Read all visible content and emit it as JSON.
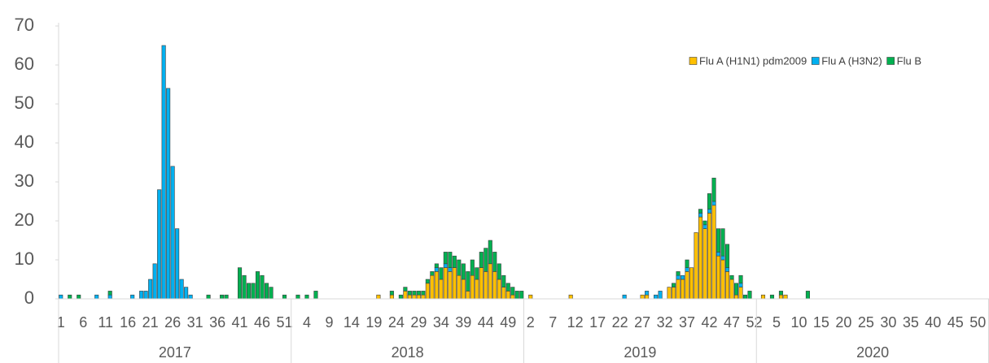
{
  "chart_data": {
    "type": "stacked_bar",
    "categories": [
      "1",
      null,
      null,
      null,
      null,
      "6",
      null,
      null,
      null,
      null,
      "11",
      null,
      null,
      null,
      null,
      "16",
      null,
      null,
      null,
      null,
      "21",
      null,
      null,
      null,
      null,
      "26",
      null,
      null,
      null,
      null,
      "31",
      null,
      null,
      null,
      null,
      "36",
      null,
      null,
      null,
      null,
      "41",
      null,
      null,
      null,
      null,
      "46",
      null,
      null,
      null,
      null,
      "51",
      null,
      null,
      null,
      null,
      "4",
      null,
      null,
      null,
      null,
      "9",
      null,
      null,
      null,
      null,
      "14",
      null,
      null,
      null,
      null,
      "19",
      null,
      null,
      null,
      null,
      "24",
      null,
      null,
      null,
      null,
      "29",
      null,
      null,
      null,
      null,
      "34",
      null,
      null,
      null,
      null,
      "39",
      null,
      null,
      null,
      null,
      "44",
      null,
      null,
      null,
      null,
      "49",
      null,
      null,
      null,
      null,
      "2",
      null,
      null,
      null,
      null,
      "7",
      null,
      null,
      null,
      null,
      "12",
      null,
      null,
      null,
      null,
      "17",
      null,
      null,
      null,
      null,
      "22",
      null,
      null,
      null,
      null,
      "27",
      null,
      null,
      null,
      null,
      "32",
      null,
      null,
      null,
      null,
      "37",
      null,
      null,
      null,
      null,
      "42",
      null,
      null,
      null,
      null,
      "47",
      null,
      null,
      null,
      null,
      "52",
      null,
      null,
      null,
      null,
      "5",
      null,
      null,
      null,
      null,
      "10",
      null,
      null,
      null,
      null,
      "15",
      null,
      null,
      null,
      null,
      "20",
      null,
      null,
      null,
      null,
      "25",
      null,
      null,
      null,
      null,
      "30",
      null,
      null,
      null,
      null,
      "35",
      null,
      null,
      null,
      null,
      "40",
      null,
      null,
      null,
      null,
      "45",
      null,
      null,
      null,
      null,
      "50",
      null,
      null
    ],
    "category_groups": [
      {
        "label": "2017",
        "size": 52
      },
      {
        "label": "2018",
        "size": 52
      },
      {
        "label": "2019",
        "size": 52
      },
      {
        "label": "2020",
        "size": 52
      }
    ],
    "series": [
      {
        "name": "Flu A (H1N1) pdm2009",
        "color": "#FFC000",
        "values": [
          0,
          0,
          0,
          0,
          0,
          0,
          0,
          0,
          0,
          0,
          0,
          0,
          0,
          0,
          0,
          0,
          0,
          0,
          0,
          0,
          0,
          0,
          0,
          0,
          0,
          0,
          0,
          0,
          0,
          0,
          0,
          0,
          0,
          0,
          0,
          0,
          0,
          0,
          0,
          0,
          0,
          0,
          0,
          0,
          0,
          0,
          0,
          0,
          0,
          0,
          0,
          0,
          0,
          0,
          0,
          0,
          0,
          0,
          0,
          0,
          0,
          0,
          0,
          0,
          0,
          0,
          0,
          0,
          0,
          0,
          0,
          1,
          0,
          0,
          1,
          0,
          0,
          2,
          1,
          1,
          1,
          1,
          4,
          6,
          7,
          5,
          8,
          7,
          8,
          6,
          5,
          2,
          6,
          5,
          8,
          7,
          9,
          7,
          5,
          3,
          2,
          1,
          0,
          0,
          0,
          1,
          0,
          0,
          0,
          0,
          0,
          0,
          0,
          0,
          1,
          0,
          0,
          0,
          0,
          0,
          0,
          0,
          0,
          0,
          0,
          0,
          0,
          0,
          0,
          0,
          1,
          1,
          0,
          0,
          0,
          0,
          3,
          3,
          5,
          5,
          7,
          8,
          17,
          21,
          18,
          22,
          24,
          11,
          10,
          7,
          5,
          1,
          3,
          0,
          0,
          0,
          0,
          1,
          0,
          0,
          0,
          1,
          1,
          0,
          0,
          0,
          0,
          0,
          0,
          0,
          0,
          0,
          0,
          0,
          0,
          0,
          0,
          0,
          0,
          0,
          0,
          0,
          0,
          0,
          0,
          0,
          0,
          0,
          0,
          0,
          0,
          0,
          0,
          0,
          0,
          0,
          0,
          0,
          0,
          0,
          0,
          0,
          0,
          0,
          0,
          0,
          0,
          0
        ]
      },
      {
        "name": "Flu A (H3N2)",
        "color": "#00B0F0",
        "values": [
          1,
          0,
          0,
          0,
          0,
          0,
          0,
          0,
          1,
          0,
          0,
          1,
          0,
          0,
          0,
          0,
          1,
          0,
          2,
          2,
          5,
          9,
          28,
          65,
          54,
          34,
          18,
          5,
          3,
          1,
          0,
          0,
          0,
          0,
          0,
          0,
          0,
          0,
          0,
          0,
          0,
          0,
          0,
          0,
          0,
          0,
          0,
          0,
          0,
          0,
          0,
          0,
          0,
          0,
          0,
          0,
          0,
          0,
          0,
          0,
          0,
          0,
          0,
          0,
          0,
          0,
          0,
          0,
          0,
          0,
          0,
          0,
          0,
          0,
          0,
          0,
          0,
          0,
          0,
          0,
          0,
          0,
          0,
          0,
          1,
          0,
          1,
          1,
          0,
          0,
          0,
          0,
          0,
          0,
          0,
          0,
          0,
          0,
          0,
          0,
          0,
          0,
          0,
          0,
          0,
          0,
          0,
          0,
          0,
          0,
          0,
          0,
          0,
          0,
          0,
          0,
          0,
          0,
          0,
          0,
          0,
          0,
          0,
          0,
          0,
          0,
          1,
          0,
          0,
          0,
          0,
          1,
          0,
          1,
          2,
          0,
          0,
          0,
          1,
          1,
          1,
          0,
          0,
          1,
          1,
          1,
          1,
          1,
          1,
          1,
          0,
          0,
          1,
          0,
          0,
          0,
          0,
          0,
          0,
          0,
          0,
          0,
          0,
          0,
          0,
          0,
          0,
          0,
          0,
          0,
          0,
          0,
          0,
          0,
          0,
          0,
          0,
          0,
          0,
          0,
          0,
          0,
          0,
          0,
          0,
          0,
          0,
          0,
          0,
          0,
          0,
          0,
          0,
          0,
          0,
          0,
          0,
          0,
          0,
          0,
          0,
          0,
          0,
          0,
          0,
          0,
          0,
          0
        ]
      },
      {
        "name": "Flu B",
        "color": "#00B050",
        "values": [
          0,
          0,
          1,
          0,
          1,
          0,
          0,
          0,
          0,
          0,
          0,
          1,
          0,
          0,
          0,
          0,
          0,
          0,
          0,
          0,
          0,
          0,
          0,
          0,
          0,
          0,
          0,
          0,
          0,
          0,
          0,
          0,
          0,
          1,
          0,
          0,
          1,
          1,
          0,
          0,
          8,
          6,
          4,
          4,
          7,
          6,
          4,
          3,
          0,
          0,
          1,
          0,
          0,
          1,
          0,
          1,
          0,
          2,
          0,
          0,
          0,
          0,
          0,
          0,
          0,
          0,
          0,
          0,
          0,
          0,
          0,
          0,
          0,
          0,
          1,
          0,
          1,
          1,
          1,
          1,
          1,
          1,
          1,
          1,
          1,
          3,
          3,
          4,
          3,
          4,
          4,
          5,
          4,
          3,
          4,
          6,
          6,
          5,
          4,
          3,
          2,
          2,
          2,
          2,
          0,
          0,
          0,
          0,
          0,
          0,
          0,
          0,
          0,
          0,
          0,
          0,
          0,
          0,
          0,
          0,
          0,
          0,
          0,
          0,
          0,
          0,
          0,
          0,
          0,
          0,
          0,
          0,
          0,
          0,
          0,
          0,
          0,
          1,
          1,
          0,
          2,
          0,
          0,
          1,
          1,
          4,
          6,
          6,
          7,
          6,
          1,
          3,
          2,
          1,
          2,
          0,
          0,
          0,
          0,
          1,
          0,
          1,
          0,
          0,
          0,
          0,
          0,
          2,
          0,
          0,
          0,
          0,
          0,
          0,
          0,
          0,
          0,
          0,
          0,
          0,
          0,
          0,
          0,
          0,
          0,
          0,
          0,
          0,
          0,
          0,
          0,
          0,
          0,
          0,
          0,
          0,
          0,
          0,
          0,
          0,
          0,
          0,
          0,
          0,
          0,
          0,
          0,
          0
        ]
      }
    ],
    "ylim": [
      0,
      70
    ],
    "yticks": [
      0,
      10,
      20,
      30,
      40,
      50,
      60,
      70
    ],
    "grid": false,
    "legend": "top-right"
  }
}
